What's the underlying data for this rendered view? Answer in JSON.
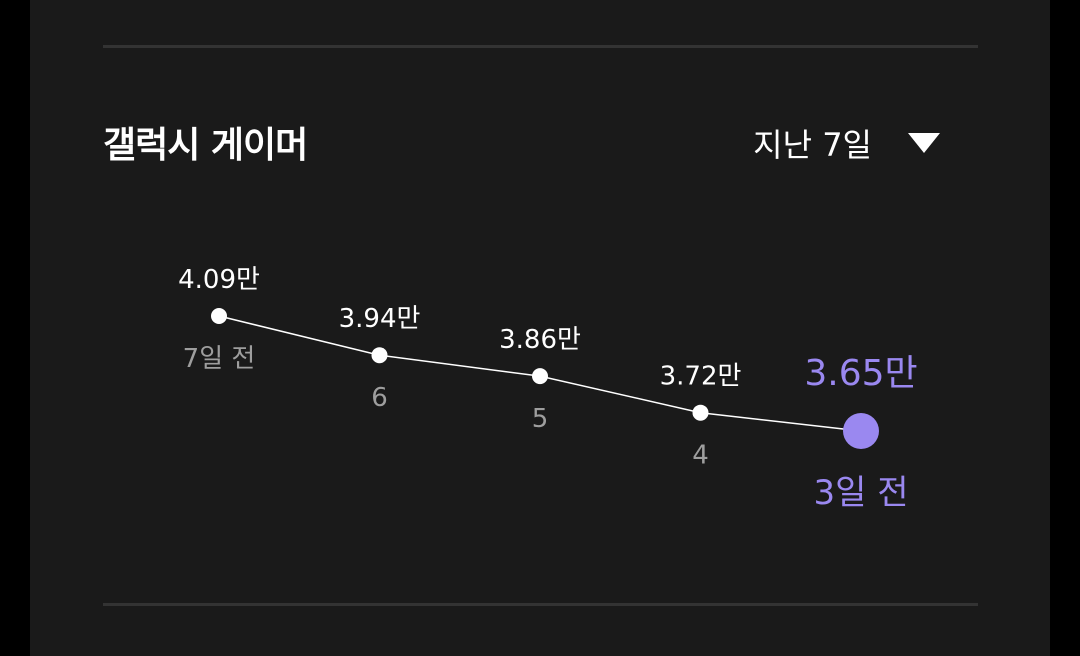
{
  "header": {
    "title": "갤럭시 게이머",
    "period_label": "지난 7일"
  },
  "colors": {
    "background": "#1a1a1a",
    "accent": "#9a88f0",
    "line": "#ffffff",
    "axis_label": "#9e9e9e"
  },
  "chart_data": {
    "type": "line",
    "categories": [
      "7일 전",
      "6",
      "5",
      "4",
      "3일 전"
    ],
    "values": [
      4.09,
      3.94,
      3.86,
      3.72,
      3.65
    ],
    "value_labels": [
      "4.09만",
      "3.94만",
      "3.86만",
      "3.72만",
      "3.65만"
    ],
    "unit": "만",
    "highlighted_index": 4,
    "grid": false,
    "legend": "none"
  }
}
